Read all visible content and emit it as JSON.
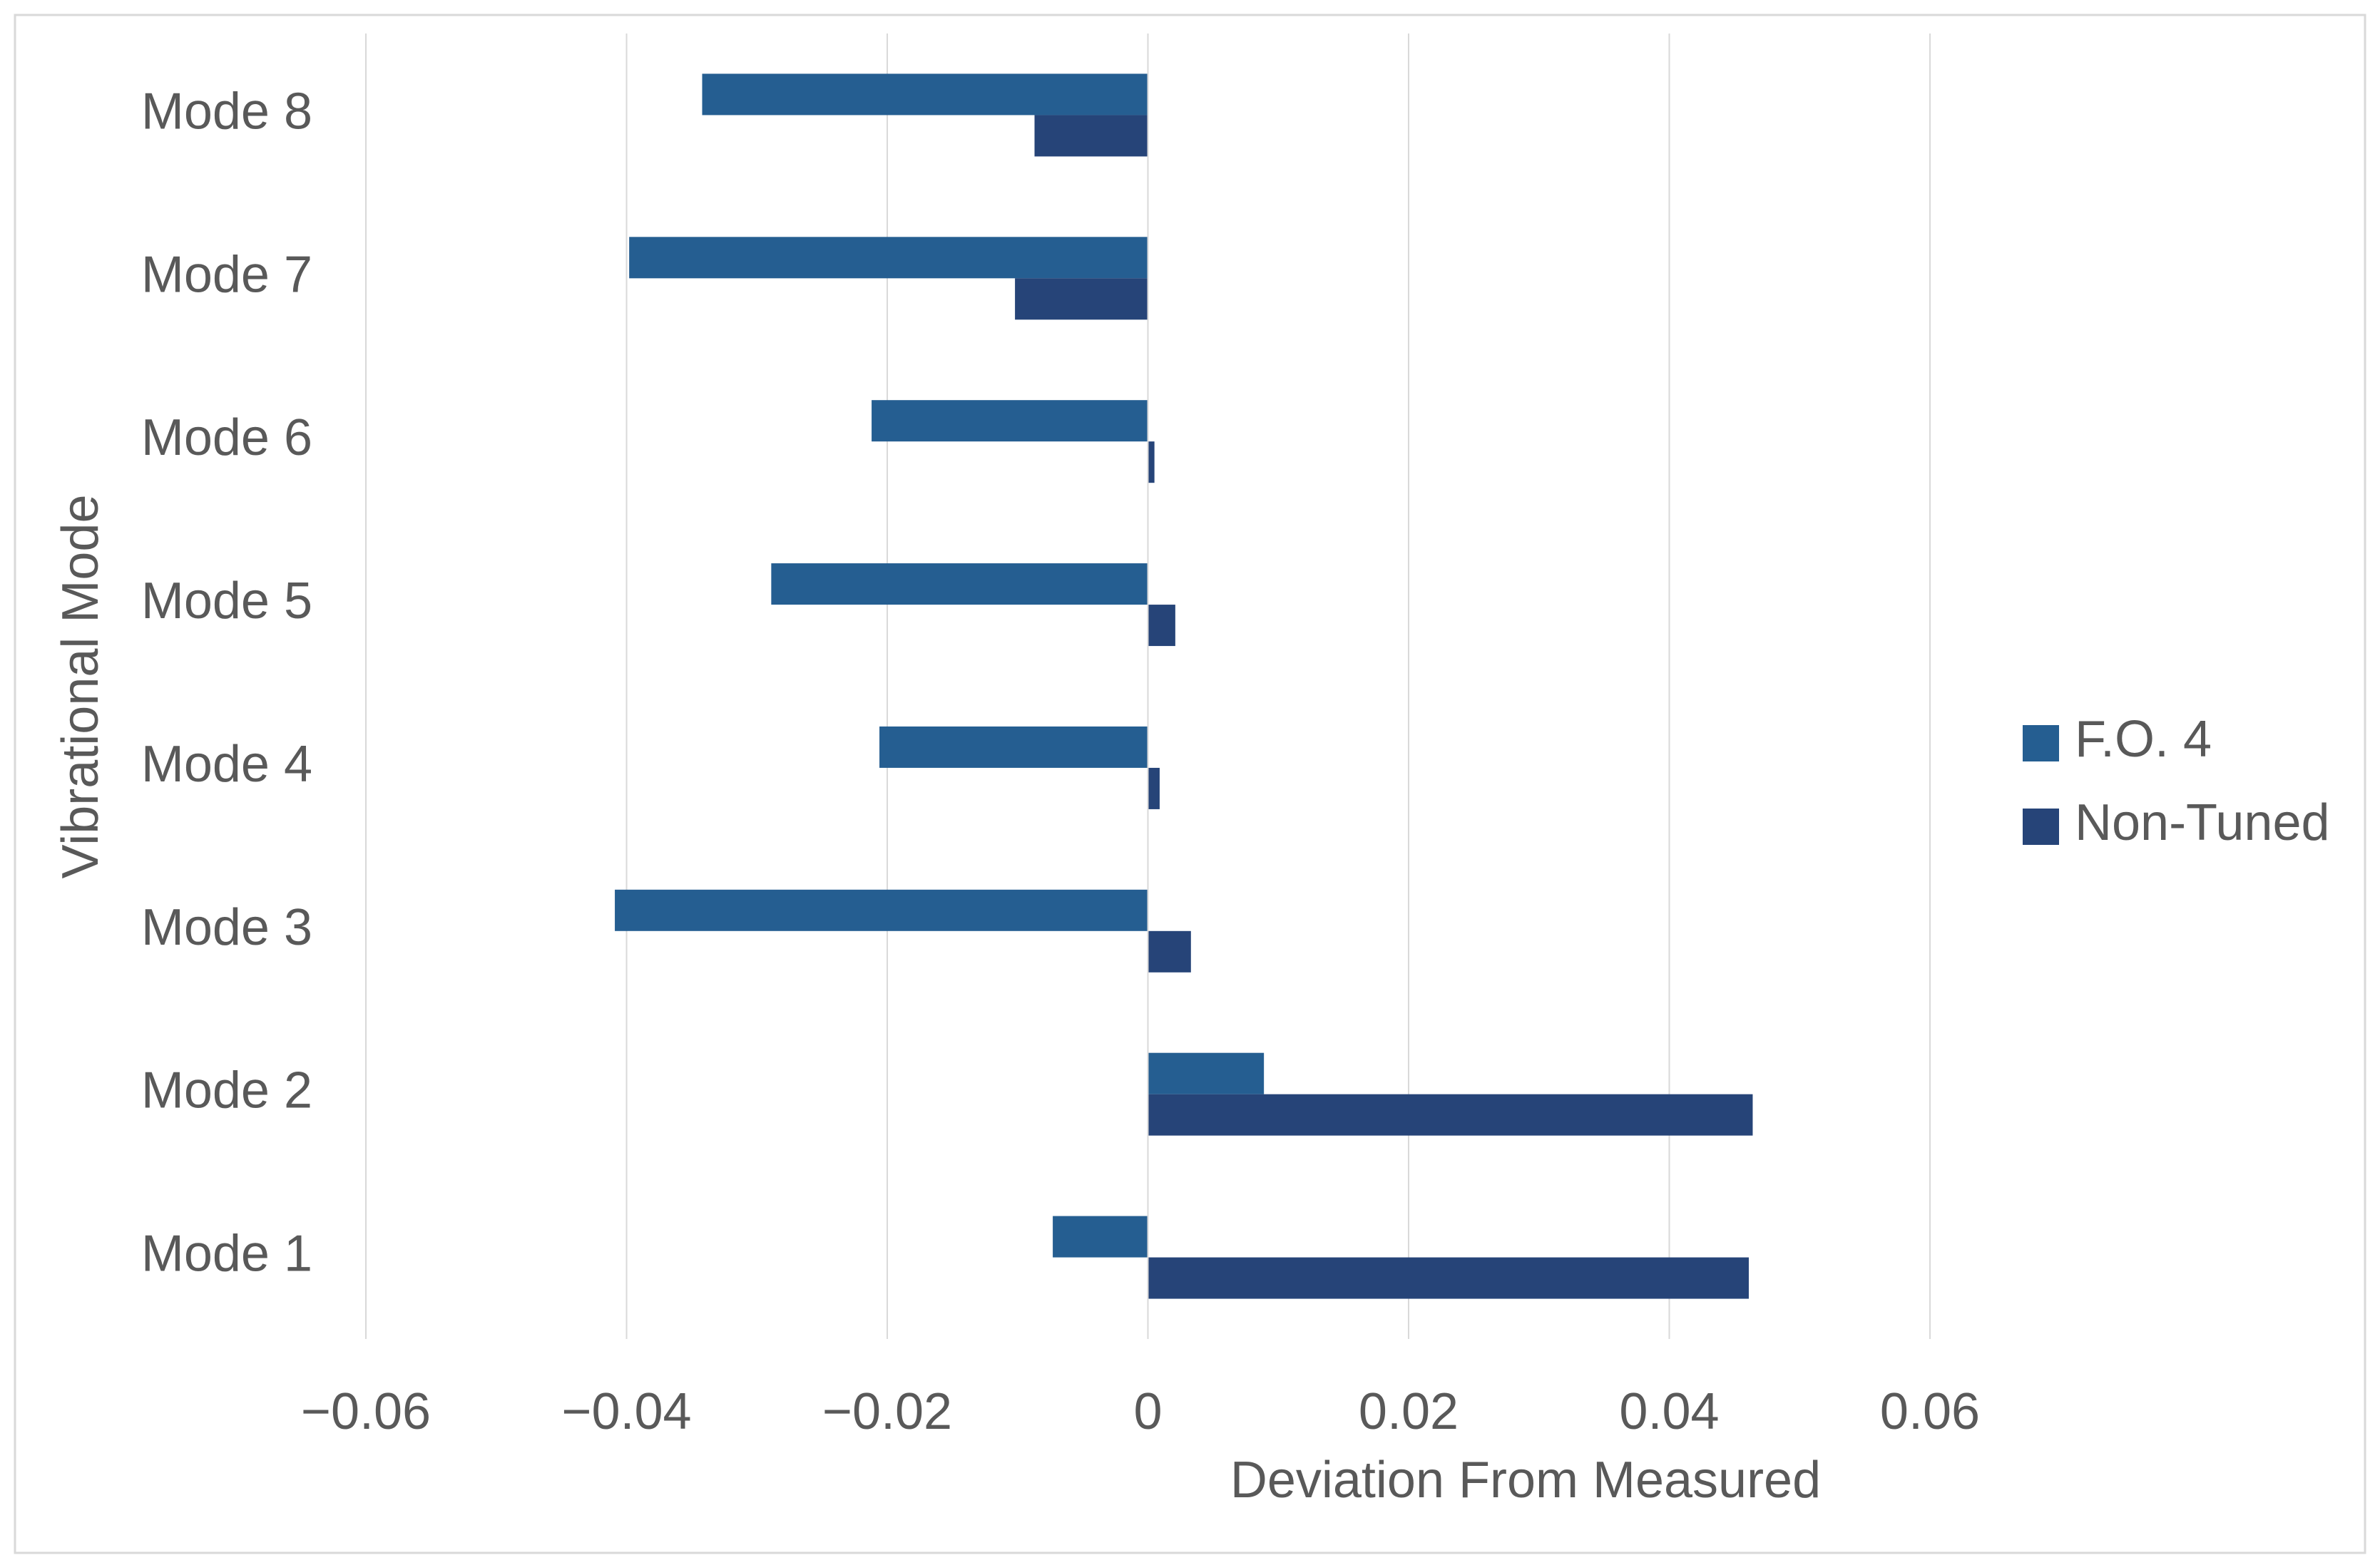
{
  "chart_data": {
    "type": "hbar",
    "y_axis_label": "Vibrational Mode",
    "x_axis_label": "Deviation From Measured",
    "categories": [
      "Mode 1",
      "Mode 2",
      "Mode 3",
      "Mode 4",
      "Mode 5",
      "Mode 6",
      "Mode 7",
      "Mode 8"
    ],
    "series": [
      {
        "name": "F.O. 4",
        "color": "#255e91",
        "values": [
          -0.0073,
          0.0089,
          -0.0409,
          -0.0206,
          -0.0289,
          -0.0212,
          -0.0398,
          -0.0342
        ]
      },
      {
        "name": "Non-Tuned",
        "color": "#264478",
        "values": [
          0.0461,
          0.0464,
          0.0033,
          0.0009,
          0.0021,
          0.0005,
          -0.0102,
          -0.0087
        ]
      }
    ],
    "xlim": [
      -0.06,
      0.06
    ],
    "xticks": [
      {
        "value": -0.06,
        "label": "−0.06"
      },
      {
        "value": -0.04,
        "label": "−0.04"
      },
      {
        "value": -0.02,
        "label": "−0.02"
      },
      0,
      0.02,
      0.04,
      0.06
    ],
    "grid": true,
    "legend": "right"
  }
}
